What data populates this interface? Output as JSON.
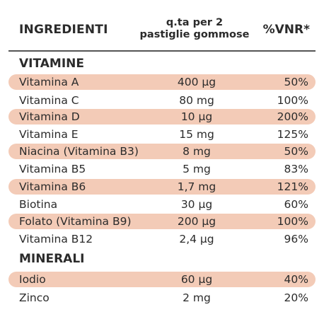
{
  "header": {
    "ingredients": "INGREDIENTI",
    "quantity_line1": "q.ta per 2",
    "quantity_line2": "pastiglie gommose",
    "vnr": "%VNR*"
  },
  "vitamins": {
    "title": "VITAMINE",
    "rows": [
      {
        "name": "Vitamina A",
        "qty": "400 µg",
        "vnr": "50%"
      },
      {
        "name": "Vitamina C",
        "qty": "80 mg",
        "vnr": "100%"
      },
      {
        "name": "Vitamina D",
        "qty": "10 µg",
        "vnr": "200%"
      },
      {
        "name": "Vitamina E",
        "qty": "15 mg",
        "vnr": "125%"
      },
      {
        "name": "Niacina (Vitamina B3)",
        "qty": "8 mg",
        "vnr": "50%"
      },
      {
        "name": "Vitamina B5",
        "qty": "5 mg",
        "vnr": "83%"
      },
      {
        "name": "Vitamina B6",
        "qty": "1,7 mg",
        "vnr": "121%"
      },
      {
        "name": "Biotina",
        "qty": "30 µg",
        "vnr": "60%"
      },
      {
        "name": "Folato (Vitamina B9)",
        "qty": "200 µg",
        "vnr": "100%"
      },
      {
        "name": "Vitamina B12",
        "qty": "2,4 µg",
        "vnr": "96%"
      }
    ]
  },
  "minerals": {
    "title": "MINERALI",
    "rows": [
      {
        "name": "Iodio",
        "qty": "60 µg",
        "vnr": "40%"
      },
      {
        "name": "Zinco",
        "qty": "2 mg",
        "vnr": "20%"
      }
    ]
  },
  "colors": {
    "highlight": "#f3cbb7",
    "text": "#2b2b2b"
  }
}
